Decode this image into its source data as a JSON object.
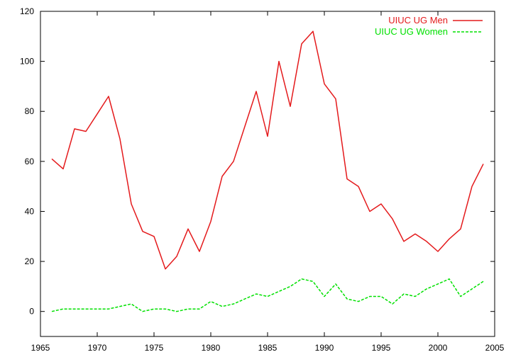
{
  "chart_data": {
    "type": "line",
    "title": "",
    "xlabel": "",
    "ylabel": "",
    "xlim": [
      1965,
      2005
    ],
    "ylim": [
      -10,
      120
    ],
    "xticks": [
      1965,
      1970,
      1975,
      1980,
      1985,
      1990,
      1995,
      2000,
      2005
    ],
    "yticks": [
      0,
      20,
      40,
      60,
      80,
      100,
      120
    ],
    "grid": false,
    "legend_position": "top-right",
    "x": [
      1966,
      1967,
      1968,
      1969,
      1970,
      1971,
      1972,
      1973,
      1974,
      1975,
      1976,
      1977,
      1978,
      1979,
      1980,
      1981,
      1982,
      1983,
      1984,
      1985,
      1986,
      1987,
      1988,
      1989,
      1990,
      1991,
      1992,
      1993,
      1994,
      1995,
      1996,
      1997,
      1998,
      1999,
      2000,
      2001,
      2002,
      2003,
      2004
    ],
    "series": [
      {
        "name": "UIUC UG Men",
        "color": "#e41a1c",
        "dash": "solid",
        "values": [
          61,
          57,
          73,
          72,
          79,
          86,
          69,
          43,
          32,
          30,
          17,
          22,
          33,
          24,
          36,
          54,
          60,
          74,
          88,
          70,
          100,
          82,
          107,
          112,
          91,
          85,
          53,
          50,
          40,
          43,
          37,
          28,
          31,
          28,
          24,
          29,
          33,
          50,
          59
        ]
      },
      {
        "name": "UIUC UG Women",
        "color": "#00e000",
        "dash": "dashed",
        "values": [
          0,
          1,
          1,
          1,
          1,
          1,
          2,
          3,
          0,
          1,
          1,
          0,
          1,
          1,
          4,
          2,
          3,
          5,
          7,
          6,
          8,
          10,
          13,
          12,
          6,
          11,
          5,
          4,
          6,
          6,
          3,
          7,
          6,
          9,
          11,
          13,
          6,
          9,
          12
        ]
      }
    ]
  }
}
